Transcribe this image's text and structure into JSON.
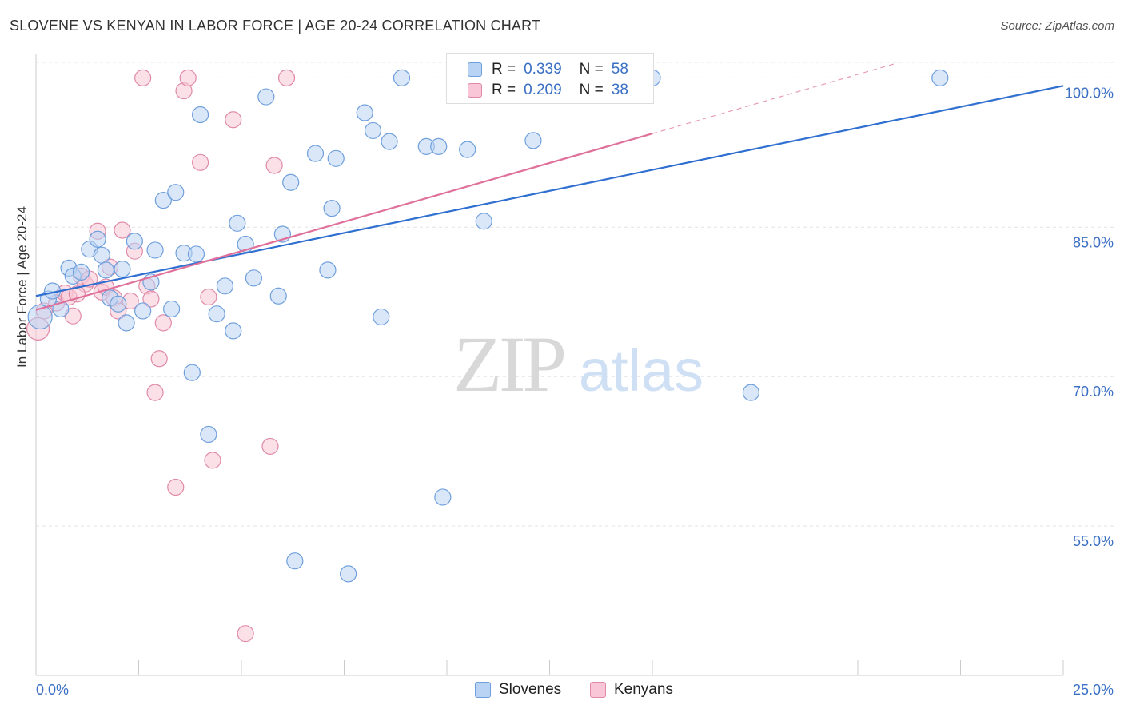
{
  "header": {
    "title": "SLOVENE VS KENYAN IN LABOR FORCE | AGE 20-24 CORRELATION CHART",
    "source": "Source: ZipAtlas.com"
  },
  "watermark": {
    "zip": "ZIP",
    "atlas": "atlas"
  },
  "legend": {
    "rows": [
      {
        "r_label": "R =",
        "r_value": "0.339",
        "n_label": "N =",
        "n_value": "58"
      },
      {
        "r_label": "R =",
        "r_value": "0.209",
        "n_label": "N =",
        "n_value": "38"
      }
    ]
  },
  "bottom_legend": {
    "slovenes": "Slovenes",
    "kenyans": "Kenyans"
  },
  "chart_data": {
    "type": "scatter",
    "title": "SLOVENE VS KENYAN IN LABOR FORCE | AGE 20-24 CORRELATION CHART",
    "ylabel": "In Labor Force | Age 20-24",
    "xlabel": "",
    "xlim": [
      0,
      25
    ],
    "ylim": [
      40,
      103
    ],
    "x_tick_labels": [
      "0.0%",
      "25.0%"
    ],
    "y_ticks": [
      55,
      70,
      85,
      100
    ],
    "y_tick_labels": [
      "55.0%",
      "70.0%",
      "85.0%",
      "100.0%"
    ],
    "grid": true,
    "legend_position": "top-center",
    "colors": {
      "slovenes_fill": "#b9d3f4",
      "slovenes_stroke": "#6f9fdc",
      "slovenes_line": "#2f6fd0",
      "kenyans_fill": "#f8c6d6",
      "kenyans_stroke": "#e08aa8",
      "kenyans_line": "#e0709a",
      "tick_label": "#3a6fc4"
    },
    "series": [
      {
        "name": "Slovenes",
        "trend": {
          "x0": 0,
          "y0": 78.1,
          "x1": 25,
          "y1": 99.2
        },
        "points": [
          [
            0.1,
            76.0,
            15
          ],
          [
            0.3,
            77.8,
            10
          ],
          [
            0.4,
            78.6,
            10
          ],
          [
            0.6,
            76.8,
            10
          ],
          [
            0.8,
            80.9,
            10
          ],
          [
            0.9,
            80.1,
            10
          ],
          [
            1.1,
            80.5,
            10
          ],
          [
            1.3,
            82.8,
            10
          ],
          [
            1.5,
            83.8,
            10
          ],
          [
            1.6,
            82.2,
            10
          ],
          [
            1.7,
            80.7,
            10
          ],
          [
            1.8,
            77.9,
            10
          ],
          [
            2.0,
            77.3,
            10
          ],
          [
            2.1,
            80.8,
            10
          ],
          [
            2.2,
            75.4,
            10
          ],
          [
            2.4,
            83.6,
            10
          ],
          [
            2.6,
            76.6,
            10
          ],
          [
            2.8,
            79.5,
            10
          ],
          [
            2.9,
            82.7,
            10
          ],
          [
            3.1,
            87.7,
            10
          ],
          [
            3.3,
            76.8,
            10
          ],
          [
            3.4,
            88.5,
            10
          ],
          [
            3.6,
            82.4,
            10
          ],
          [
            3.8,
            70.4,
            10
          ],
          [
            3.9,
            82.3,
            10
          ],
          [
            4.0,
            96.3,
            10
          ],
          [
            4.2,
            64.2,
            10
          ],
          [
            4.4,
            76.3,
            10
          ],
          [
            4.6,
            79.1,
            10
          ],
          [
            4.8,
            74.6,
            10
          ],
          [
            4.9,
            85.4,
            10
          ],
          [
            5.1,
            83.3,
            10
          ],
          [
            5.3,
            79.9,
            10
          ],
          [
            5.6,
            98.1,
            10
          ],
          [
            5.9,
            78.1,
            10
          ],
          [
            6.0,
            84.3,
            10
          ],
          [
            6.2,
            89.5,
            10
          ],
          [
            6.3,
            51.5,
            10
          ],
          [
            6.8,
            92.4,
            10
          ],
          [
            7.1,
            80.7,
            10
          ],
          [
            7.2,
            86.9,
            10
          ],
          [
            7.3,
            91.9,
            10
          ],
          [
            7.6,
            50.2,
            10
          ],
          [
            8.0,
            96.5,
            10
          ],
          [
            8.2,
            94.7,
            10
          ],
          [
            8.4,
            76.0,
            10
          ],
          [
            8.6,
            93.6,
            10
          ],
          [
            8.9,
            100.0,
            10
          ],
          [
            9.5,
            93.1,
            10
          ],
          [
            9.8,
            93.1,
            10
          ],
          [
            9.9,
            57.9,
            10
          ],
          [
            10.5,
            92.8,
            10
          ],
          [
            10.9,
            85.6,
            10
          ],
          [
            11.7,
            100.0,
            10
          ],
          [
            12.1,
            93.7,
            10
          ],
          [
            15.0,
            100.0,
            10
          ],
          [
            17.4,
            68.4,
            10
          ],
          [
            22.0,
            100.0,
            10
          ]
        ]
      },
      {
        "name": "Kenyans",
        "trend": {
          "x0": 0,
          "y0": 76.7,
          "x1": 15,
          "y1": 94.4,
          "dash_to_x": 25,
          "dash_to_y": 106.3
        },
        "points": [
          [
            0.05,
            74.8,
            14
          ],
          [
            0.2,
            76.6,
            10
          ],
          [
            0.5,
            77.4,
            10
          ],
          [
            0.7,
            78.4,
            10
          ],
          [
            0.8,
            78.0,
            10
          ],
          [
            0.9,
            76.1,
            10
          ],
          [
            1.1,
            80.1,
            10
          ],
          [
            1.2,
            79.3,
            10
          ],
          [
            1.3,
            79.8,
            10
          ],
          [
            1.5,
            84.6,
            10
          ],
          [
            1.6,
            78.5,
            10
          ],
          [
            1.7,
            79.0,
            10
          ],
          [
            1.8,
            81.0,
            10
          ],
          [
            1.9,
            77.9,
            10
          ],
          [
            2.0,
            76.6,
            10
          ],
          [
            2.1,
            84.7,
            10
          ],
          [
            2.3,
            77.6,
            10
          ],
          [
            2.4,
            82.6,
            10
          ],
          [
            2.6,
            100.0,
            10
          ],
          [
            2.7,
            79.1,
            10
          ],
          [
            2.8,
            77.8,
            10
          ],
          [
            2.9,
            68.4,
            10
          ],
          [
            3.0,
            71.8,
            10
          ],
          [
            3.1,
            75.4,
            10
          ],
          [
            3.4,
            58.9,
            10
          ],
          [
            3.6,
            98.7,
            10
          ],
          [
            3.7,
            100.0,
            10
          ],
          [
            4.0,
            91.5,
            10
          ],
          [
            4.2,
            78.0,
            10
          ],
          [
            4.3,
            61.6,
            10
          ],
          [
            4.8,
            95.8,
            10
          ],
          [
            5.1,
            44.2,
            10
          ],
          [
            5.7,
            63.0,
            10
          ],
          [
            5.8,
            91.2,
            10
          ],
          [
            6.1,
            100.0,
            10
          ],
          [
            10.3,
            100.0,
            10
          ],
          [
            11.4,
            100.0,
            10
          ],
          [
            1.0,
            78.3,
            10
          ]
        ]
      }
    ]
  }
}
